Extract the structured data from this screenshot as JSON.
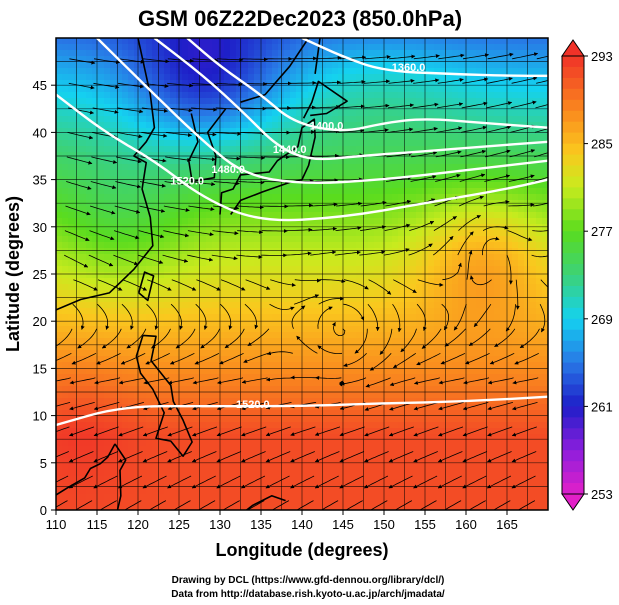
{
  "chart_data": {
    "type": "heatmap",
    "title": "GSM 06Z22Dec2023 (850.0hPa)",
    "xlabel": "Longitude (degrees)",
    "ylabel": "Latitude  (degrees)",
    "xlim": [
      110,
      170
    ],
    "ylim": [
      0,
      50
    ],
    "x_ticks": [
      110,
      115,
      120,
      125,
      130,
      135,
      140,
      145,
      150,
      155,
      160,
      165
    ],
    "y_ticks": [
      0,
      5,
      10,
      15,
      20,
      25,
      30,
      35,
      40,
      45
    ],
    "grid": true,
    "colorbar": {
      "min": 253,
      "max": 293,
      "ticks": [
        253,
        261,
        269,
        277,
        285,
        293
      ],
      "placement": "right"
    },
    "contours": [
      {
        "value": "1360.0",
        "points": [
          [
            140,
            50
          ],
          [
            145,
            48
          ],
          [
            150,
            46.5
          ],
          [
            158,
            46.2
          ],
          [
            165,
            46
          ],
          [
            170,
            46
          ]
        ]
      },
      {
        "value": "1400.0",
        "points": [
          [
            126,
            50
          ],
          [
            130,
            47
          ],
          [
            135,
            44
          ],
          [
            139,
            41
          ],
          [
            145,
            40
          ],
          [
            150,
            41
          ],
          [
            155,
            41.5
          ],
          [
            162,
            41
          ],
          [
            170,
            40.5
          ]
        ]
      },
      {
        "value": "1440.0",
        "points": [
          [
            122,
            50
          ],
          [
            128,
            46
          ],
          [
            133,
            42
          ],
          [
            137,
            38.5
          ],
          [
            141,
            37
          ],
          [
            147,
            37.5
          ],
          [
            155,
            38
          ],
          [
            162,
            38.5
          ],
          [
            170,
            39
          ]
        ]
      },
      {
        "value": "1480.0",
        "points": [
          [
            115,
            50
          ],
          [
            122,
            44
          ],
          [
            128,
            39
          ],
          [
            133,
            35.5
          ],
          [
            140,
            34.5
          ],
          [
            150,
            35
          ],
          [
            160,
            36
          ],
          [
            170,
            37
          ]
        ]
      },
      {
        "value": "1520.0",
        "points": [
          [
            110,
            44
          ],
          [
            116,
            40
          ],
          [
            122,
            37
          ],
          [
            128,
            33
          ],
          [
            135,
            30.5
          ],
          [
            145,
            31
          ],
          [
            155,
            32.5
          ],
          [
            165,
            34
          ],
          [
            170,
            35
          ]
        ]
      },
      {
        "value": "1520.0",
        "points": [
          [
            110,
            9
          ],
          [
            118,
            11
          ],
          [
            128,
            11
          ],
          [
            140,
            11
          ],
          [
            150,
            11.3
          ],
          [
            160,
            11.5
          ],
          [
            170,
            12
          ]
        ]
      }
    ],
    "contour_labels": [
      {
        "text": "1360.0",
        "lon": 153,
        "lat": 46.5
      },
      {
        "text": "1400.0",
        "lon": 143,
        "lat": 40.3
      },
      {
        "text": "1440.0",
        "lon": 138.5,
        "lat": 37.8
      },
      {
        "text": "1480.0",
        "lon": 131,
        "lat": 35.7
      },
      {
        "text": "1520.0",
        "lon": 126,
        "lat": 34.5
      },
      {
        "text": "1520.0",
        "lon": 134,
        "lat": 10.8
      }
    ],
    "vortices": [
      {
        "lon": 163,
        "lat": 28
      },
      {
        "lon": 145,
        "lat": 19
      }
    ]
  },
  "footer": {
    "credit_line1": "Drawing by DCL (https://www.gfd-dennou.org/library/dcl/)",
    "credit_line2": "Data from http://database.rish.kyoto-u.ac.jp/arch/jmadata/"
  }
}
